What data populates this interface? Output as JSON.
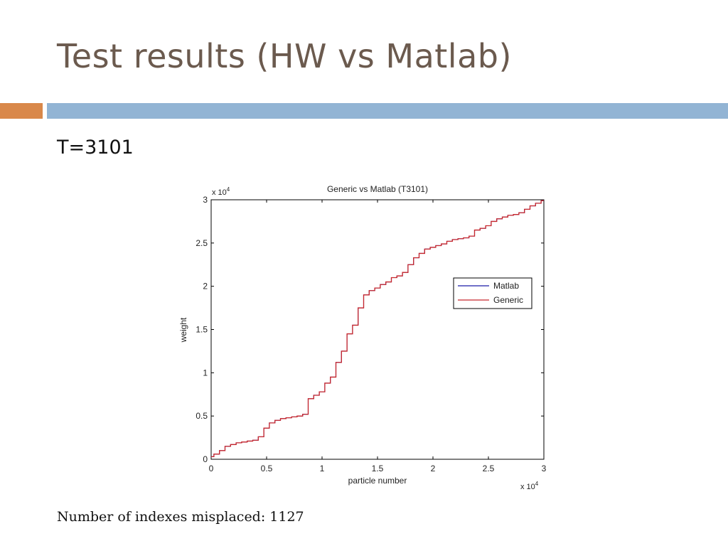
{
  "slide": {
    "title": "Test results (HW vs Matlab)",
    "subtitle": "T=3101",
    "footer": "Number of indexes misplaced: 1127",
    "accent_orange": "#d9884a",
    "accent_blue": "#92b4d4"
  },
  "chart_data": {
    "type": "line",
    "title": "Generic vs Matlab (T3101)",
    "xlabel": "particle number",
    "ylabel": "weight",
    "xlim": [
      0,
      30000
    ],
    "ylim": [
      0,
      30000
    ],
    "x_ticks": [
      0,
      5000,
      10000,
      15000,
      20000,
      25000,
      30000
    ],
    "x_tick_labels": [
      "0",
      "0.5",
      "1",
      "1.5",
      "2",
      "2.5",
      "3"
    ],
    "y_ticks": [
      0,
      5000,
      10000,
      15000,
      20000,
      25000,
      30000
    ],
    "y_tick_labels": [
      "0",
      "0.5",
      "1",
      "1.5",
      "2",
      "2.5",
      "3"
    ],
    "x_multiplier": {
      "base": "x 10",
      "exp": "4"
    },
    "y_multiplier": {
      "base": "x 10",
      "exp": "4"
    },
    "legend_position": "right-middle",
    "grid": false,
    "x": [
      0,
      500,
      1000,
      1500,
      2000,
      2500,
      3000,
      3500,
      4000,
      4500,
      5000,
      5500,
      6000,
      6500,
      7000,
      7500,
      8000,
      8500,
      9000,
      9500,
      10000,
      10500,
      11000,
      11500,
      12000,
      12500,
      13000,
      13500,
      14000,
      14500,
      15000,
      15500,
      16000,
      16500,
      17000,
      17500,
      18000,
      18500,
      19000,
      19500,
      20000,
      20500,
      21000,
      21500,
      22000,
      22500,
      23000,
      23500,
      24000,
      24500,
      25000,
      25500,
      26000,
      26500,
      27000,
      27500,
      28000,
      28500,
      29000,
      29500,
      30000
    ],
    "series": [
      {
        "name": "Matlab",
        "color": "#1a1aa8",
        "values": [
          300,
          600,
          1000,
          1500,
          1700,
          1900,
          2000,
          2100,
          2200,
          2600,
          3600,
          4200,
          4500,
          4700,
          4800,
          4900,
          5000,
          5200,
          7000,
          7400,
          7800,
          8800,
          9500,
          11200,
          12500,
          14500,
          15500,
          17500,
          19000,
          19500,
          19800,
          20200,
          20500,
          21000,
          21200,
          21600,
          22500,
          23300,
          23800,
          24300,
          24500,
          24700,
          24900,
          25200,
          25400,
          25500,
          25600,
          25800,
          26500,
          26700,
          27000,
          27500,
          27800,
          28000,
          28200,
          28300,
          28500,
          28900,
          29300,
          29600,
          29900
        ]
      },
      {
        "name": "Generic",
        "color": "#c8282d",
        "values": [
          300,
          600,
          1000,
          1500,
          1700,
          1900,
          2000,
          2100,
          2200,
          2600,
          3600,
          4200,
          4500,
          4700,
          4800,
          4900,
          5000,
          5200,
          7000,
          7400,
          7800,
          8800,
          9500,
          11200,
          12500,
          14500,
          15500,
          17500,
          19000,
          19500,
          19800,
          20200,
          20500,
          21000,
          21200,
          21600,
          22500,
          23300,
          23800,
          24300,
          24500,
          24700,
          24900,
          25200,
          25400,
          25500,
          25600,
          25800,
          26500,
          26700,
          27000,
          27500,
          27800,
          28000,
          28200,
          28300,
          28500,
          28900,
          29300,
          29600,
          29900
        ]
      }
    ]
  }
}
